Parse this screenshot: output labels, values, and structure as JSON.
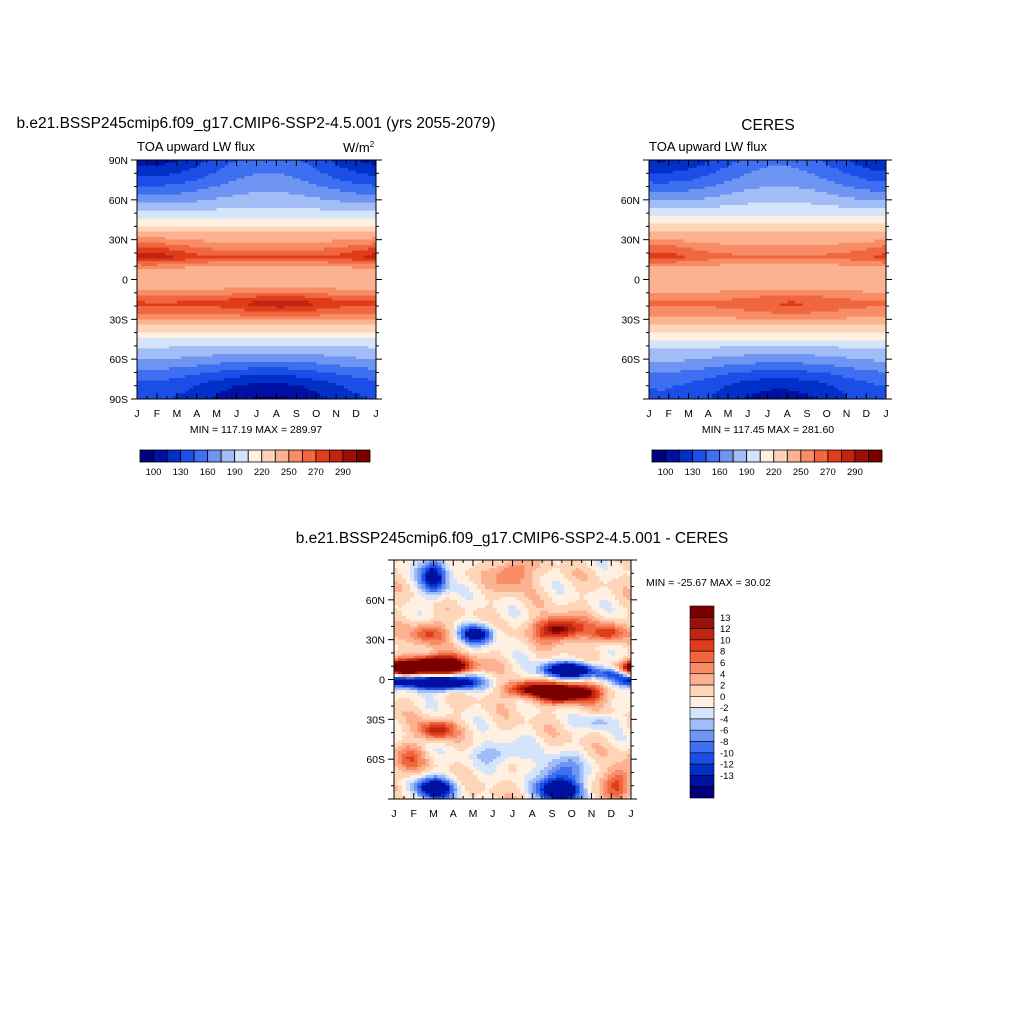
{
  "colors": {
    "full": [
      "#00007f",
      "#0010a0",
      "#0030c8",
      "#1a4ee6",
      "#3d6ff0",
      "#6f95f2",
      "#a2bdf5",
      "#d4e4fa",
      "#fff0e2",
      "#ffd5ba",
      "#fcb290",
      "#f78c65",
      "#f0663e",
      "#e03c1c",
      "#c1240f",
      "#98110a",
      "#7a0000"
    ],
    "diff": [
      "#00007f",
      "#0010a0",
      "#0030c8",
      "#1a4ee6",
      "#3d6ff0",
      "#6f95f2",
      "#a2bdf5",
      "#d4e4fa",
      "#fff0e2",
      "#ffd5ba",
      "#fcb290",
      "#f78c65",
      "#f0663e",
      "#e03c1c",
      "#c1240f",
      "#98110a",
      "#7a0000"
    ]
  },
  "chart_data": [
    {
      "type": "heatmap",
      "id": "model",
      "title": "b.e21.BSSP245cmip6.f09_g17.CMIP6-SSP2-4.5.001 (yrs 2055-2079)",
      "subtitle_left": "TOA upward LW flux",
      "units_base": "W/m",
      "units_exp": "2",
      "x_tick_labels": [
        "J",
        "F",
        "M",
        "A",
        "M",
        "J",
        "J",
        "A",
        "S",
        "O",
        "N",
        "D",
        "J"
      ],
      "y_tick_labels": [
        "90N",
        "60N",
        "30N",
        "0",
        "30S",
        "60S",
        "90S"
      ],
      "ylim": [
        -90,
        90
      ],
      "stats": "MIN = 117.19 MAX = 289.97",
      "colorbar_labels": [
        "100",
        "130",
        "160",
        "190",
        "220",
        "250",
        "270",
        "290"
      ],
      "lat_profile": [
        [
          90,
          130
        ],
        [
          75,
          150
        ],
        [
          60,
          175
        ],
        [
          45,
          205
        ],
        [
          35,
          240
        ],
        [
          25,
          255
        ],
        [
          17,
          270
        ],
        [
          8,
          245
        ],
        [
          0,
          240
        ],
        [
          -8,
          250
        ],
        [
          -18,
          272
        ],
        [
          -28,
          255
        ],
        [
          -38,
          225
        ],
        [
          -50,
          190
        ],
        [
          -62,
          165
        ],
        [
          -72,
          140
        ],
        [
          -80,
          125
        ],
        [
          -90,
          115
        ]
      ],
      "seasonal_features": [
        {
          "lat": 20,
          "lon_center": 0.05,
          "width": 0.12,
          "amp": 20
        },
        {
          "lat": -18,
          "lon_center": 0.6,
          "width": 0.15,
          "amp": 18
        },
        {
          "lat": 75,
          "lon_center": 0.55,
          "width": 0.18,
          "amp": 70
        }
      ]
    },
    {
      "type": "heatmap",
      "id": "obs",
      "title": "CERES",
      "subtitle_left": "TOA upward LW flux",
      "x_tick_labels": [
        "J",
        "F",
        "M",
        "A",
        "M",
        "J",
        "J",
        "A",
        "S",
        "O",
        "N",
        "D",
        "J"
      ],
      "y_tick_labels": [
        "60N",
        "30N",
        "0",
        "30S",
        "60S"
      ],
      "ylim": [
        -90,
        90
      ],
      "stats": "MIN = 117.45 MAX = 281.60",
      "colorbar_labels": [
        "100",
        "130",
        "160",
        "190",
        "220",
        "250",
        "270",
        "290"
      ],
      "lat_profile": [
        [
          90,
          135
        ],
        [
          75,
          155
        ],
        [
          60,
          180
        ],
        [
          45,
          210
        ],
        [
          35,
          238
        ],
        [
          25,
          252
        ],
        [
          17,
          262
        ],
        [
          8,
          243
        ],
        [
          0,
          238
        ],
        [
          -8,
          248
        ],
        [
          -18,
          262
        ],
        [
          -28,
          252
        ],
        [
          -38,
          224
        ],
        [
          -50,
          192
        ],
        [
          -62,
          168
        ],
        [
          -72,
          145
        ],
        [
          -80,
          132
        ],
        [
          -90,
          125
        ]
      ],
      "seasonal_features": [
        {
          "lat": 20,
          "lon_center": 0.05,
          "width": 0.12,
          "amp": 15
        },
        {
          "lat": -18,
          "lon_center": 0.6,
          "width": 0.15,
          "amp": 12
        },
        {
          "lat": 75,
          "lon_center": 0.55,
          "width": 0.18,
          "amp": 65
        }
      ]
    },
    {
      "type": "heatmap",
      "id": "diff",
      "title": "b.e21.BSSP245cmip6.f09_g17.CMIP6-SSP2-4.5.001 - CERES",
      "x_tick_labels": [
        "J",
        "F",
        "M",
        "A",
        "M",
        "J",
        "J",
        "A",
        "S",
        "O",
        "N",
        "D",
        "J"
      ],
      "y_tick_labels": [
        "60N",
        "30N",
        "0",
        "30S",
        "60S"
      ],
      "ylim": [
        -90,
        90
      ],
      "stats": "MIN = -25.67 MAX =  30.02",
      "colorbar_labels": [
        "13",
        "12",
        "10",
        "8",
        "6",
        "4",
        "2",
        "0",
        "-2",
        "-4",
        "-6",
        "-8",
        "-10",
        "-12",
        "-13"
      ]
    }
  ]
}
